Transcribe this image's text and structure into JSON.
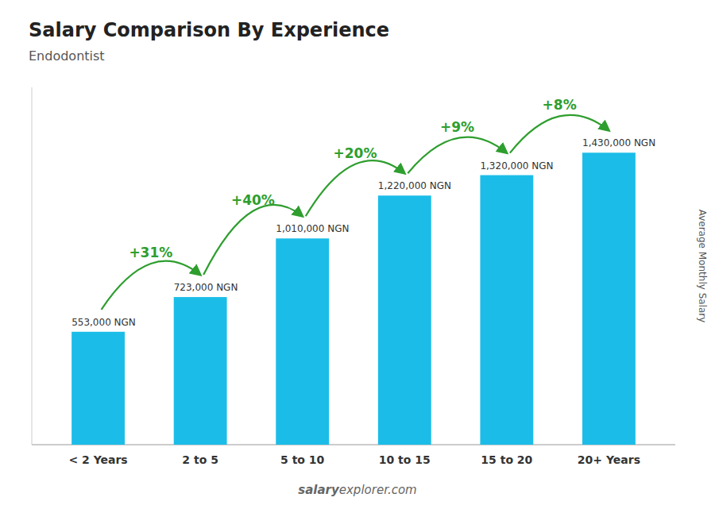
{
  "chart_data": {
    "type": "bar",
    "title": "Salary Comparison By Experience",
    "subtitle": "Endodontist",
    "y_label": "Average Monthly Salary",
    "categories": [
      "< 2 Years",
      "2 to 5",
      "5 to 10",
      "10 to 15",
      "15 to 20",
      "20+ Years"
    ],
    "values": [
      553000,
      723000,
      1010000,
      1220000,
      1320000,
      1430000
    ],
    "value_labels": [
      "553,000 NGN",
      "723,000 NGN",
      "1,010,000 NGN",
      "1,220,000 NGN",
      "1,320,000 NGN",
      "1,430,000 NGN"
    ],
    "data_labels": true,
    "annotations": [
      "+31%",
      "+40%",
      "+20%",
      "+9%",
      "+8%"
    ],
    "watermark": [
      "salary",
      "explorer.com"
    ],
    "color": "#1bbde8",
    "ylim": [
      0,
      1750000
    ],
    "tick_labels": "x",
    "grid": false
  }
}
